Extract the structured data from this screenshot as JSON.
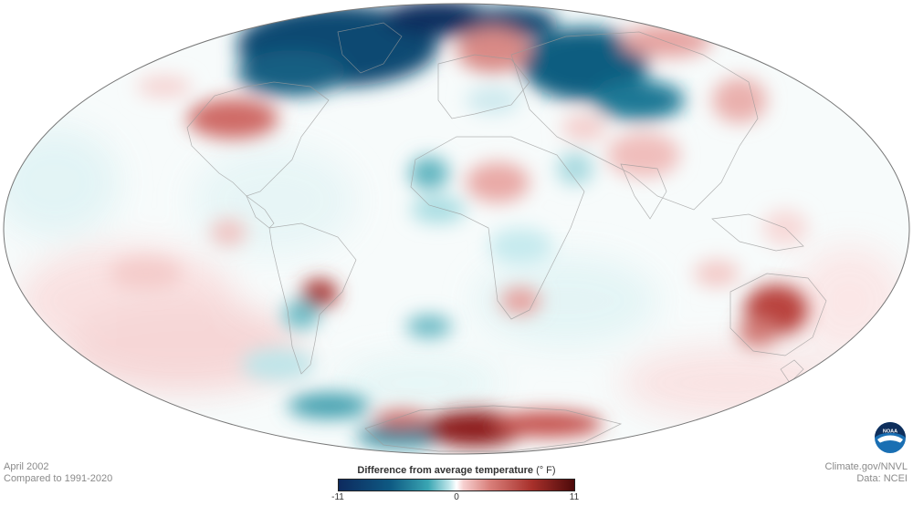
{
  "period": "April 2002",
  "baseline": "Compared to 1991-2020",
  "legend": {
    "title": "Difference from average temperature",
    "unit": "(° F)",
    "min": "-11",
    "mid": "0",
    "max": "11",
    "colors": {
      "cold": "#0d2a5e",
      "neutral": "#ffffff",
      "warm": "#4d0a0a"
    }
  },
  "credits": {
    "source": "Climate.gov/NNVL",
    "data": "Data: NCEI"
  },
  "logo": {
    "name": "noaa-logo",
    "text": "NOAA"
  },
  "map": {
    "projection": "mollweide",
    "anomalies": [
      {
        "region": "Arctic / Greenland",
        "value": -11
      },
      {
        "region": "Canadian Arctic",
        "value": -9
      },
      {
        "region": "Northern Siberia",
        "value": -9
      },
      {
        "region": "Scandinavia / Barents Sea",
        "value": 5
      },
      {
        "region": "Central North America",
        "value": 6
      },
      {
        "region": "Eastern Russia",
        "value": 4
      },
      {
        "region": "Southwest Asia / India",
        "value": 3
      },
      {
        "region": "Sahara / Central Africa",
        "value": 3
      },
      {
        "region": "Southern Brazil / Paraguay",
        "value": 7
      },
      {
        "region": "Southern Africa",
        "value": 4
      },
      {
        "region": "Eastern Australia",
        "value": 7
      },
      {
        "region": "West Africa",
        "value": -4
      },
      {
        "region": "Southern Argentina",
        "value": -4
      },
      {
        "region": "Southern Ocean",
        "value": -5
      },
      {
        "region": "West Antarctica",
        "value": 9
      },
      {
        "region": "East Antarctica",
        "value": 8
      }
    ]
  }
}
